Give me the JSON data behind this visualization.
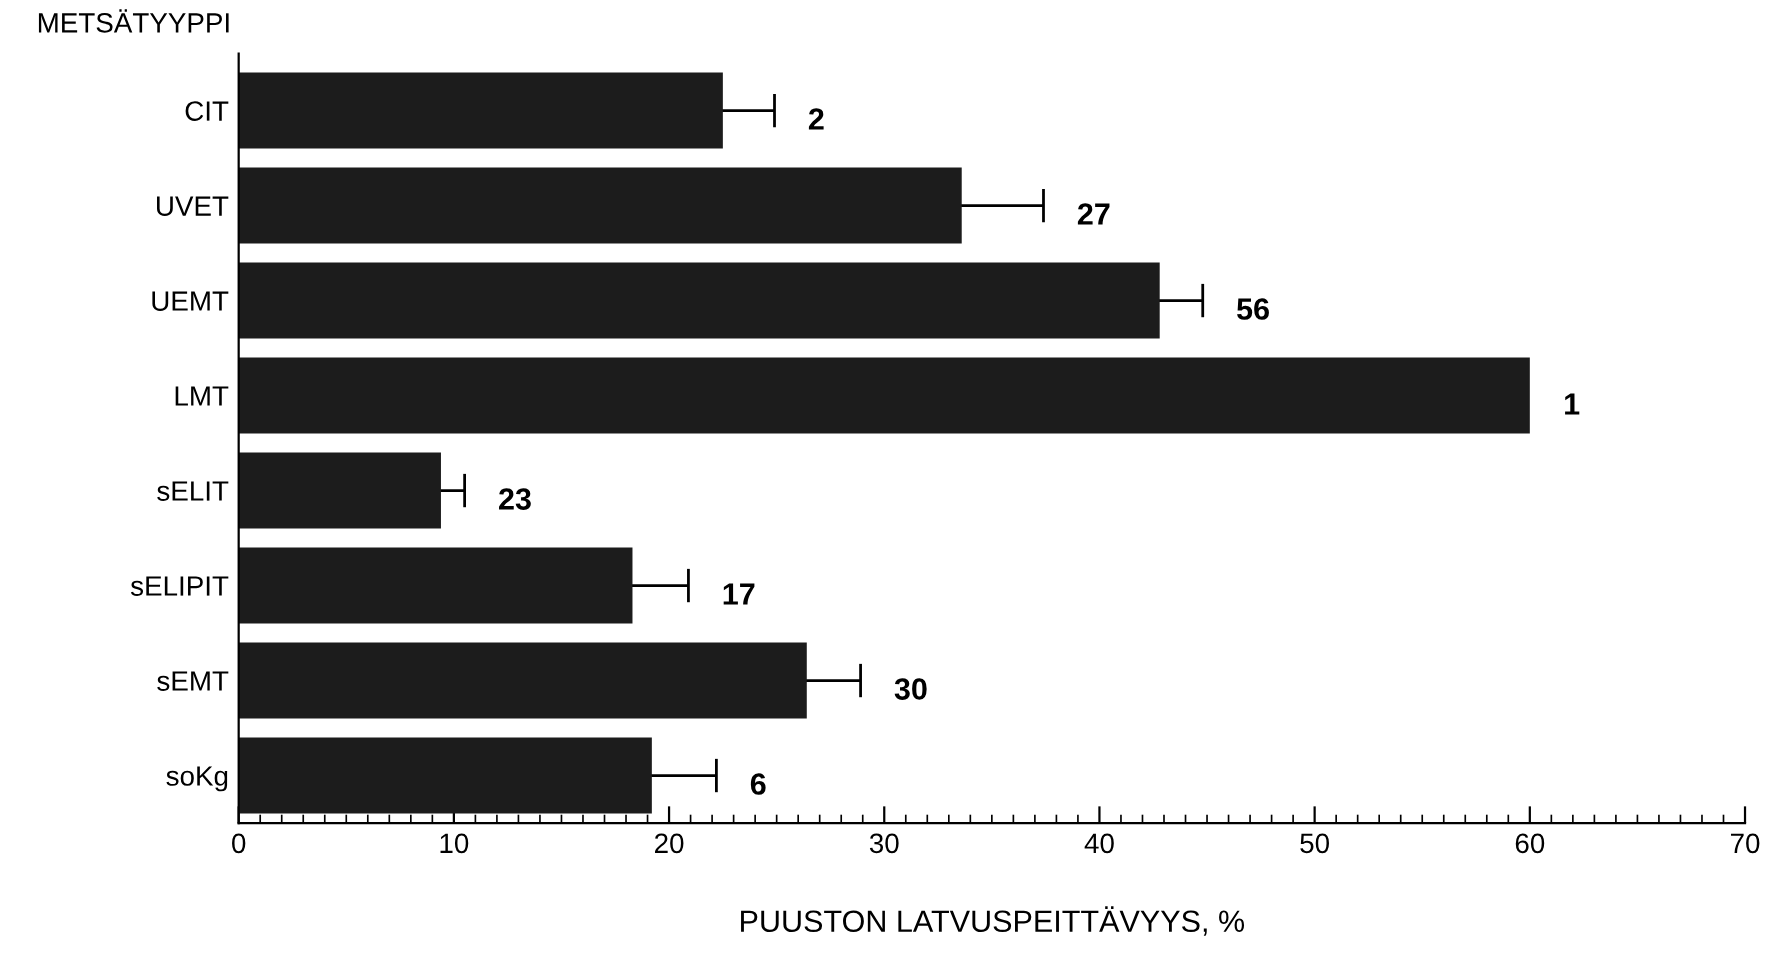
{
  "chart_data": {
    "type": "bar",
    "orientation": "horizontal",
    "ylabel": "METSÄTYYPPI",
    "xlabel": "PUUSTON LATVUSPEITTÄVYYS, %",
    "categories": [
      "CIT",
      "UVET",
      "UEMT",
      "LMT",
      "sELIT",
      "sELIPIT",
      "sEMT",
      "soKg"
    ],
    "values": [
      22.5,
      33.6,
      42.8,
      60.0,
      9.4,
      18.3,
      26.4,
      19.2
    ],
    "errors": [
      2.4,
      3.8,
      2.0,
      null,
      1.1,
      2.6,
      2.5,
      3.0
    ],
    "color": "#1c1c1c",
    "xlim": [
      0,
      70
    ],
    "xticks": [
      0,
      10,
      20,
      30,
      40,
      50,
      60,
      70
    ],
    "grid": false,
    "annotations": [
      "2",
      "27",
      "56",
      "1",
      "23",
      "17",
      "30",
      "6"
    ]
  }
}
